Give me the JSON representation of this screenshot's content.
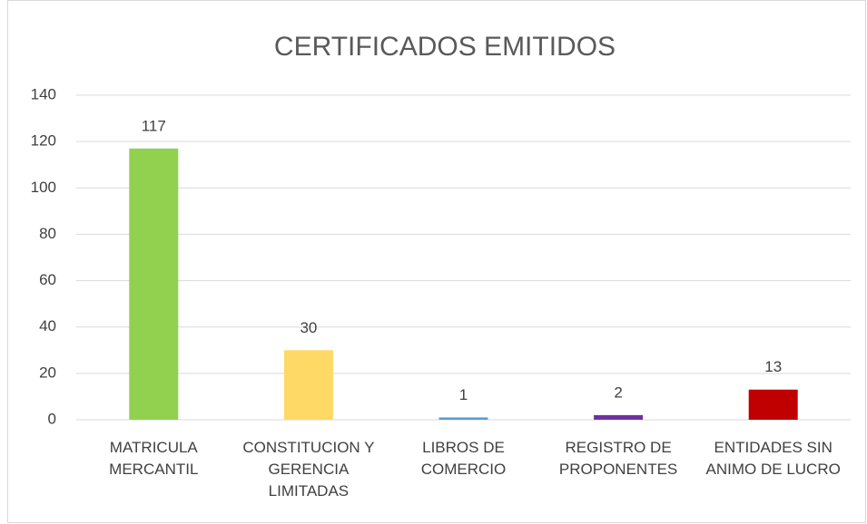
{
  "chart_data": {
    "type": "bar",
    "title": "CERTIFICADOS EMITIDOS",
    "categories": [
      "MATRICULA MERCANTIL",
      "CONSTITUCION Y GERENCIA LIMITADAS",
      "LIBROS DE COMERCIO",
      "REGISTRO DE PROPONENTES",
      "ENTIDADES SIN ANIMO DE LUCRO"
    ],
    "values": [
      117,
      30,
      1,
      2,
      13
    ],
    "colors": [
      "#92d050",
      "#ffd966",
      "#5b9bd5",
      "#7030a0",
      "#c00000"
    ],
    "ylim": [
      0,
      140
    ],
    "yticks": [
      0,
      20,
      40,
      60,
      80,
      100,
      120,
      140
    ],
    "grid": true
  }
}
